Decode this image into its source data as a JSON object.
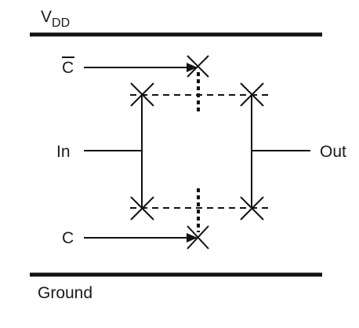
{
  "labels": {
    "vdd_main": "V",
    "vdd_sub": "DD",
    "ground": "Ground",
    "c_bar": "C",
    "c": "C",
    "input": "In",
    "output": "Out"
  },
  "colors": {
    "ink": "#111111",
    "background": "#ffffff"
  }
}
